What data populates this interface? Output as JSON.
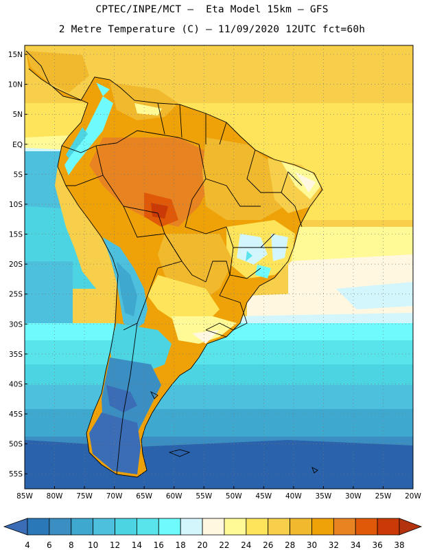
{
  "header": {
    "line1": "CPTEC/INPE/MCT –  Eta Model 15km – GFS",
    "line2": "2 Metre Temperature (C) – 11/09/2020 12UTC fct=60h"
  },
  "axes": {
    "lat_labels": [
      "15N",
      "10N",
      "5N",
      "EQ",
      "5S",
      "10S",
      "15S",
      "20S",
      "25S",
      "30S",
      "35S",
      "40S",
      "45S",
      "50S",
      "55S"
    ],
    "lon_labels": [
      "85W",
      "80W",
      "75W",
      "70W",
      "65W",
      "60W",
      "55W",
      "50W",
      "45W",
      "40W",
      "35W",
      "30W",
      "25W",
      "20W"
    ]
  },
  "colorbar": {
    "labels": [
      "4",
      "6",
      "8",
      "10",
      "12",
      "14",
      "16",
      "18",
      "20",
      "22",
      "24",
      "26",
      "28",
      "30",
      "32",
      "34",
      "36",
      "38"
    ],
    "colors": [
      "#3a6db5",
      "#2a78b8",
      "#3a8ec2",
      "#3fa8cf",
      "#4cc0dc",
      "#4dd4e2",
      "#59e4ec",
      "#6ffbfd",
      "#d2f6fb",
      "#fff7e0",
      "#fffa95",
      "#fde45a",
      "#f8cf4a",
      "#f1b92e",
      "#efa208",
      "#e88322",
      "#e05908",
      "#c93a06",
      "#b3330f"
    ]
  },
  "chart_data": {
    "type": "heatmap",
    "title": "2 Metre Temperature (C) – 11/09/2020 12UTC fct=60h",
    "lon_range": [
      -85,
      -20
    ],
    "lat_range": [
      -57.5,
      16.5
    ],
    "lon_ticks": [
      -85,
      -80,
      -75,
      -70,
      -65,
      -60,
      -55,
      -50,
      -45,
      -40,
      -35,
      -30,
      -25,
      -20
    ],
    "lat_ticks": [
      15,
      10,
      5,
      0,
      -5,
      -10,
      -15,
      -20,
      -25,
      -30,
      -35,
      -40,
      -45,
      -50,
      -55
    ],
    "color_levels_C": [
      4,
      6,
      8,
      10,
      12,
      14,
      16,
      18,
      20,
      22,
      24,
      26,
      28,
      30,
      32,
      34,
      36,
      38
    ],
    "grid": true
  }
}
